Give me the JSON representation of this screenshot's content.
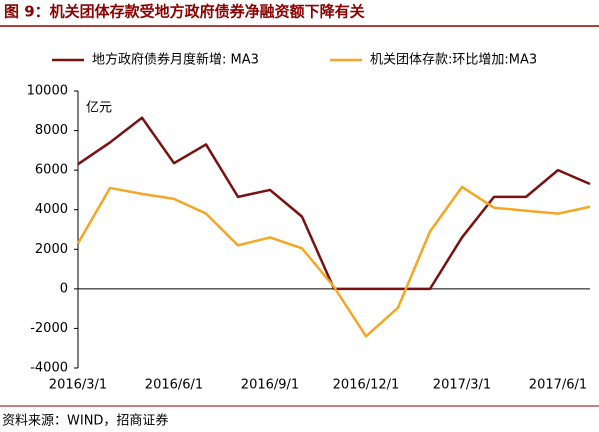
{
  "chart_data": {
    "type": "line",
    "title": "图 9：机关团体存款受地方政府债券净融资额下降有关",
    "y_unit": "亿元",
    "source": "资料来源：WIND，招商证券",
    "categories": [
      "2016/3/1",
      null,
      null,
      "2016/6/1",
      null,
      null,
      "2016/9/1",
      null,
      null,
      "2016/12/1",
      null,
      null,
      "2017/3/1",
      null,
      null,
      "2017/6/1",
      null
    ],
    "series": [
      {
        "name": "地方政府债券月度新增: MA3",
        "color": "#7b1010",
        "values": [
          6300,
          7400,
          8650,
          6350,
          7300,
          4650,
          5000,
          3650,
          0,
          0,
          0,
          0,
          2600,
          4650,
          4650,
          6000,
          5300
        ]
      },
      {
        "name": "机关团体存款:环比增加:MA3",
        "color": "#f5a623",
        "values": [
          2300,
          5100,
          4800,
          4550,
          3800,
          2200,
          2600,
          2050,
          100,
          -2400,
          -950,
          2900,
          5150,
          4100,
          3950,
          3800,
          4150
        ]
      }
    ],
    "ylim": [
      -4000,
      10000
    ],
    "yticks": [
      -4000,
      -2000,
      0,
      2000,
      4000,
      6000,
      8000,
      10000
    ],
    "grid": false,
    "legend": "top"
  }
}
